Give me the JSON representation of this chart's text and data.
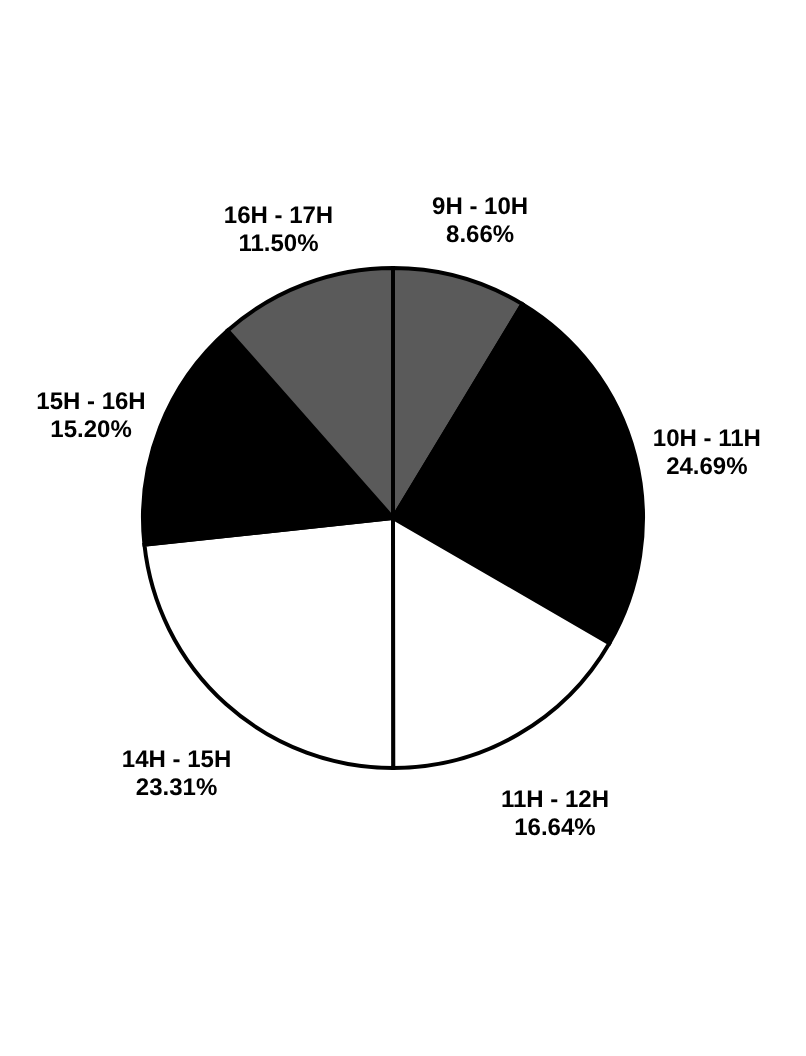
{
  "chart_data": {
    "type": "pie",
    "categories": [
      "9H - 10H",
      "10H - 11H",
      "11H - 12H",
      "14H - 15H",
      "15H - 16H",
      "16H - 17H"
    ],
    "values": [
      8.66,
      24.69,
      16.64,
      23.31,
      15.2,
      11.5
    ],
    "value_labels": [
      "8.66%",
      "24.69%",
      "16.64%",
      "23.31%",
      "15.20%",
      "11.50%"
    ],
    "colors": [
      "#5a5a5a",
      "#000000",
      "#ffffff",
      "#ffffff",
      "#000000",
      "#5a5a5a"
    ],
    "legend": false
  }
}
